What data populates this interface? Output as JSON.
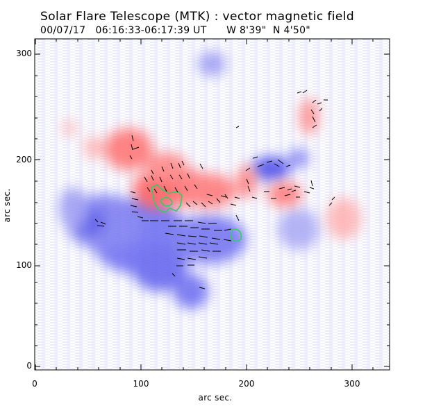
{
  "header": {
    "title": "Solar Flare Telescope (MTK) : vector magnetic field",
    "subtitle": "00/07/17   06:16:33-06:17:39 UT      W 8'39\"  N 4'50\""
  },
  "axes": {
    "x_label": "arc sec.",
    "y_label": "arc sec.",
    "x_ticks": [
      "0",
      "100",
      "200",
      "300"
    ],
    "y_ticks": [
      "0",
      "100",
      "200",
      "300"
    ]
  },
  "colors": {
    "frame": "#000000",
    "background": "#ffffff",
    "positive_field": "#ff7070",
    "negative_field": "#5a5af0",
    "noise_stripes": "#d6d6f6",
    "contour": "#33cc66",
    "vectors": "#000000"
  }
}
